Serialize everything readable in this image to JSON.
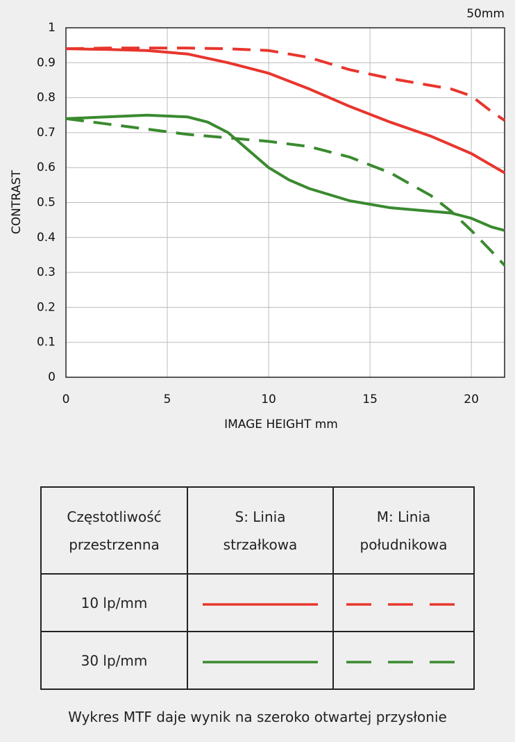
{
  "chart_data": {
    "type": "line",
    "corner_label": "50mm",
    "xlabel": "IMAGE HEIGHT   mm",
    "ylabel": "CONTRAST",
    "xlim": [
      0,
      21.64
    ],
    "ylim": [
      0,
      1
    ],
    "xticks": [
      0,
      5,
      10,
      15,
      20
    ],
    "yticks": [
      0,
      0.1,
      0.2,
      0.3,
      0.4,
      0.5,
      0.6,
      0.7,
      0.8,
      0.9,
      1
    ],
    "grid": true,
    "series": [
      {
        "color": "#e8352d",
        "dashed": false,
        "x": [
          0,
          2,
          4,
          6,
          8,
          10,
          12,
          14,
          16,
          18,
          20,
          21.64
        ],
        "values": [
          0.94,
          0.938,
          0.935,
          0.925,
          0.9,
          0.87,
          0.825,
          0.775,
          0.73,
          0.69,
          0.64,
          0.585
        ]
      },
      {
        "color": "#e8352d",
        "dashed": true,
        "x": [
          0,
          2,
          4,
          6,
          8,
          10,
          12,
          14,
          16,
          18,
          19,
          20,
          21,
          21.64
        ],
        "values": [
          0.94,
          0.942,
          0.942,
          0.942,
          0.94,
          0.935,
          0.915,
          0.88,
          0.855,
          0.835,
          0.825,
          0.805,
          0.76,
          0.735
        ]
      },
      {
        "color": "#3a8a2f",
        "dashed": false,
        "x": [
          0,
          2,
          4,
          6,
          7,
          8,
          9,
          10,
          11,
          12,
          14,
          16,
          18,
          19,
          20,
          21,
          21.64
        ],
        "values": [
          0.74,
          0.745,
          0.75,
          0.745,
          0.73,
          0.7,
          0.65,
          0.6,
          0.565,
          0.54,
          0.505,
          0.485,
          0.475,
          0.47,
          0.455,
          0.43,
          0.42
        ]
      },
      {
        "color": "#3a8a2f",
        "dashed": true,
        "x": [
          0,
          2,
          4,
          6,
          8,
          10,
          12,
          14,
          16,
          18,
          19,
          20,
          21,
          21.64
        ],
        "values": [
          0.74,
          0.725,
          0.71,
          0.695,
          0.685,
          0.675,
          0.66,
          0.63,
          0.585,
          0.52,
          0.475,
          0.42,
          0.36,
          0.32
        ]
      }
    ]
  },
  "table": {
    "header": [
      "Częstotliwość\nprzestrzenna",
      "S: Linia\nstrzałkowa",
      "M: Linia\npołudnikowa"
    ],
    "rows": [
      [
        "10 lp/mm"
      ],
      [
        "30 lp/mm"
      ]
    ]
  },
  "caption": "Wykres MTF daje wynik na szeroko otwartej przysłonie"
}
